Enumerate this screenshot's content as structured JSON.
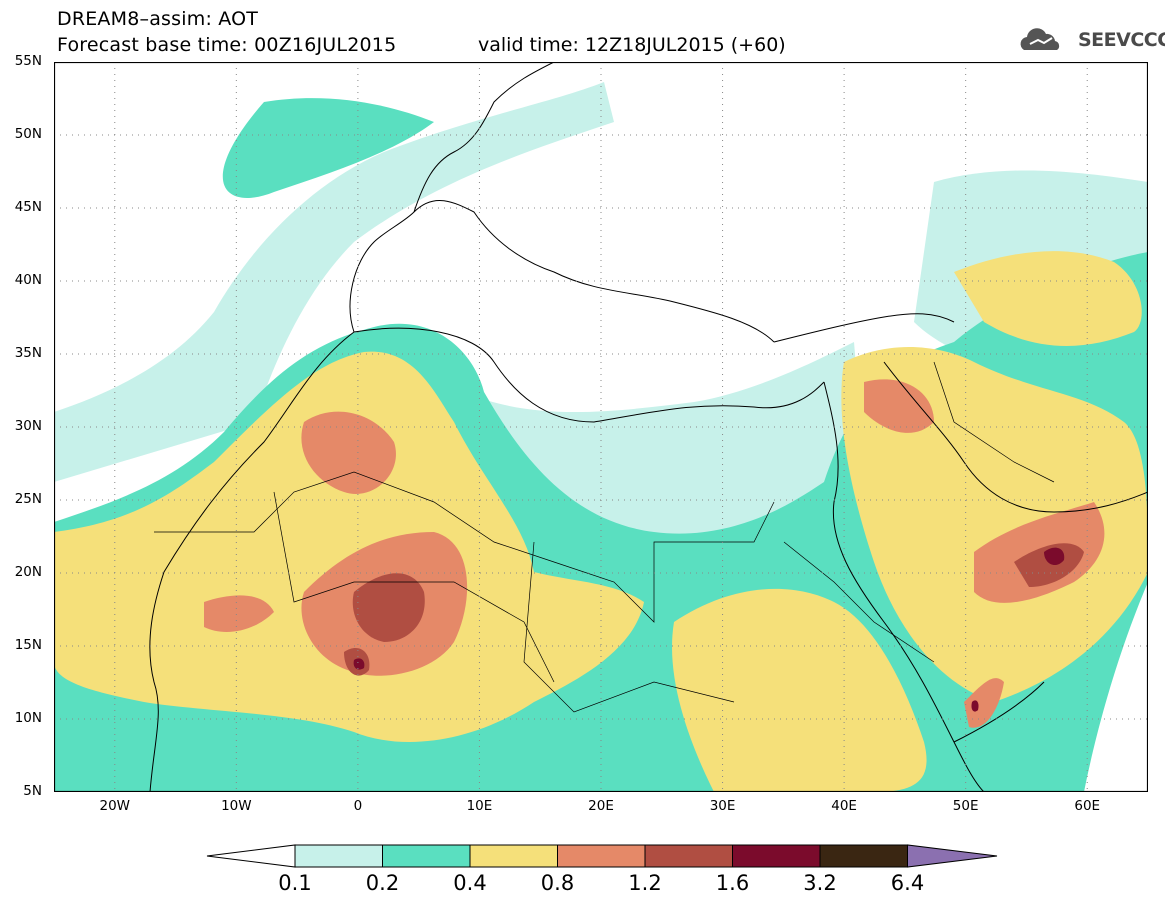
{
  "header": {
    "title_line1": "DREAM8–assim: AOT",
    "base_time": "Forecast base time: 00Z16JUL2015",
    "valid_time": "valid time: 12Z18JUL2015 (+60)",
    "logo_text": "SEEVCCC"
  },
  "map": {
    "lat_labels": [
      "55N",
      "50N",
      "45N",
      "40N",
      "35N",
      "30N",
      "25N",
      "20N",
      "15N",
      "10N",
      "5N"
    ],
    "lon_labels": [
      "20W",
      "10W",
      "0",
      "10E",
      "20E",
      "30E",
      "40E",
      "50E",
      "60E"
    ],
    "lat_range": [
      5,
      55
    ],
    "lon_range": [
      -25,
      65
    ],
    "grid": "dotted"
  },
  "legend": {
    "levels": [
      "0.1",
      "0.2",
      "0.4",
      "0.8",
      "1.2",
      "1.6",
      "3.2",
      "6.4"
    ],
    "colors": [
      "#ffffff",
      "#c7f1ea",
      "#5adfc0",
      "#f5e07a",
      "#e58968",
      "#b04e42",
      "#7b0b2c",
      "#3a2612",
      "#8b70b0"
    ]
  }
}
